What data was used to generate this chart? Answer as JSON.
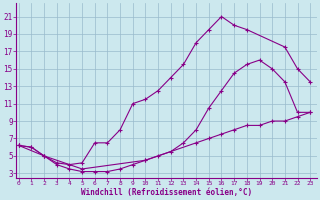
{
  "xlabel": "Windchill (Refroidissement éolien,°C)",
  "background_color": "#cce8ee",
  "line_color": "#880088",
  "grid_color": "#99bbcc",
  "x_ticks": [
    0,
    1,
    2,
    3,
    4,
    5,
    6,
    7,
    8,
    9,
    10,
    11,
    12,
    13,
    14,
    15,
    16,
    17,
    18,
    19,
    20,
    21,
    22,
    23
  ],
  "y_ticks": [
    3,
    5,
    7,
    9,
    11,
    13,
    15,
    17,
    19,
    21
  ],
  "xlim": [
    -0.2,
    23.5
  ],
  "ylim": [
    2.5,
    22.5
  ],
  "line1_x": [
    0,
    1,
    2,
    3,
    4,
    5,
    6,
    7,
    8,
    9,
    10,
    11,
    12,
    13,
    14,
    15,
    16,
    17,
    18,
    21,
    22,
    23
  ],
  "line1_y": [
    6.2,
    6.0,
    5.0,
    4.2,
    4.0,
    4.2,
    6.5,
    6.5,
    8.0,
    11.0,
    11.5,
    12.5,
    14.0,
    15.5,
    18.0,
    19.5,
    21.0,
    20.0,
    19.5,
    17.5,
    15.0,
    13.5
  ],
  "line2_x": [
    0,
    1,
    2,
    3,
    4,
    5,
    6,
    7,
    8,
    9,
    10,
    11,
    12,
    13,
    14,
    15,
    16,
    17,
    18,
    19,
    20,
    21,
    22,
    23
  ],
  "line2_y": [
    6.2,
    6.0,
    5.0,
    4.0,
    3.5,
    3.2,
    3.2,
    3.2,
    3.5,
    4.0,
    4.5,
    5.0,
    5.5,
    6.5,
    8.0,
    10.5,
    12.5,
    14.5,
    15.5,
    16.0,
    15.0,
    13.5,
    10.0,
    10.0
  ],
  "line3_x": [
    0,
    2,
    5,
    10,
    14,
    15,
    16,
    17,
    18,
    19,
    20,
    21,
    22,
    23
  ],
  "line3_y": [
    6.2,
    5.0,
    3.5,
    4.5,
    6.5,
    7.0,
    7.5,
    8.0,
    8.5,
    8.5,
    9.0,
    9.0,
    9.5,
    10.0
  ]
}
